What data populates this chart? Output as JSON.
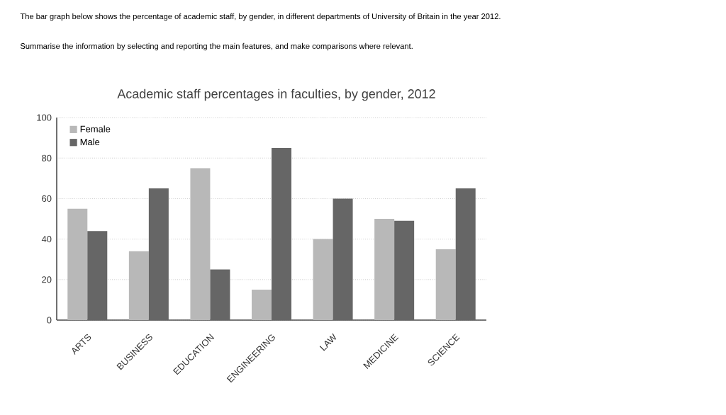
{
  "chart_data": {
    "type": "bar",
    "title": "Academic staff percentages in faculties, by gender, 2012",
    "annotations": [
      "The bar graph below shows the percentage of academic staff, by gender, in different departments of University of Britain in the year 2012.",
      "Summarise the information by selecting and reporting the main features, and make comparisons where relevant."
    ],
    "categories": [
      "ARTS",
      "BUSINESS",
      "EDUCATION",
      "ENGINEERING",
      "LAW",
      "MEDICINE",
      "SCIENCE"
    ],
    "series": [
      {
        "name": "Female",
        "color": "#b8b8b8",
        "values": [
          55,
          34,
          75,
          15,
          40,
          50,
          35
        ]
      },
      {
        "name": "Male",
        "color": "#666666",
        "values": [
          44,
          65,
          25,
          85,
          60,
          49,
          65
        ]
      }
    ],
    "ylim": [
      0,
      100
    ],
    "yticks": [
      0,
      20,
      40,
      60,
      80,
      100
    ],
    "grid": "y",
    "legend": "top left"
  }
}
